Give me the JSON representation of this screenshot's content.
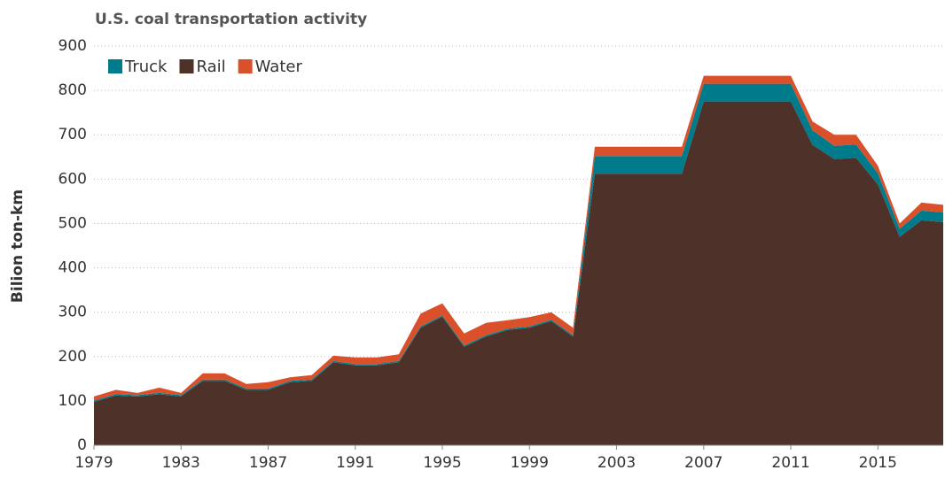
{
  "chart_data": {
    "type": "area",
    "stacked": true,
    "title": "U.S. coal transportation activity",
    "y_label": "Bilion ton-km",
    "x": [
      1979,
      1980,
      1981,
      1982,
      1983,
      1984,
      1985,
      1986,
      1987,
      1988,
      1989,
      1990,
      1991,
      1992,
      1993,
      1994,
      1995,
      1996,
      1997,
      1998,
      1999,
      2000,
      2001,
      2002,
      2003,
      2004,
      2005,
      2006,
      2007,
      2008,
      2009,
      2010,
      2011,
      2012,
      2013,
      2014,
      2015,
      2016,
      2017,
      2018
    ],
    "xlim": [
      1979,
      2018
    ],
    "xticks": [
      1979,
      1983,
      1987,
      1991,
      1995,
      1999,
      2003,
      2007,
      2011,
      2015
    ],
    "ylim": [
      0,
      900
    ],
    "yticks": [
      0,
      100,
      200,
      300,
      400,
      500,
      600,
      700,
      800,
      900
    ],
    "grid": true,
    "legend_position": "top-left",
    "series": [
      {
        "name": "Truck",
        "color": "#007b8c",
        "values": [
          3,
          3,
          3,
          3,
          3,
          3,
          3,
          3,
          3,
          3,
          3,
          3,
          3,
          3,
          3,
          3,
          3,
          3,
          3,
          3,
          3,
          3,
          3,
          40,
          40,
          40,
          40,
          40,
          40,
          40,
          40,
          40,
          40,
          33,
          30,
          30,
          25,
          18,
          22,
          22
        ]
      },
      {
        "name": "Rail",
        "color": "#4e3129",
        "values": [
          98,
          112,
          110,
          115,
          110,
          145,
          145,
          125,
          125,
          142,
          145,
          187,
          180,
          180,
          187,
          265,
          290,
          222,
          245,
          260,
          265,
          280,
          245,
          612,
          612,
          612,
          612,
          612,
          775,
          775,
          775,
          775,
          775,
          677,
          645,
          648,
          588,
          470,
          507,
          503
        ]
      },
      {
        "name": "Water",
        "color": "#d9502b",
        "values": [
          9,
          10,
          5,
          12,
          5,
          14,
          14,
          10,
          14,
          8,
          10,
          12,
          15,
          15,
          15,
          29,
          27,
          27,
          28,
          19,
          21,
          17,
          17,
          21,
          21,
          21,
          21,
          21,
          18,
          18,
          18,
          18,
          18,
          20,
          25,
          22,
          17,
          12,
          18,
          17
        ]
      }
    ],
    "stack_order": [
      "Rail",
      "Truck",
      "Water"
    ]
  }
}
